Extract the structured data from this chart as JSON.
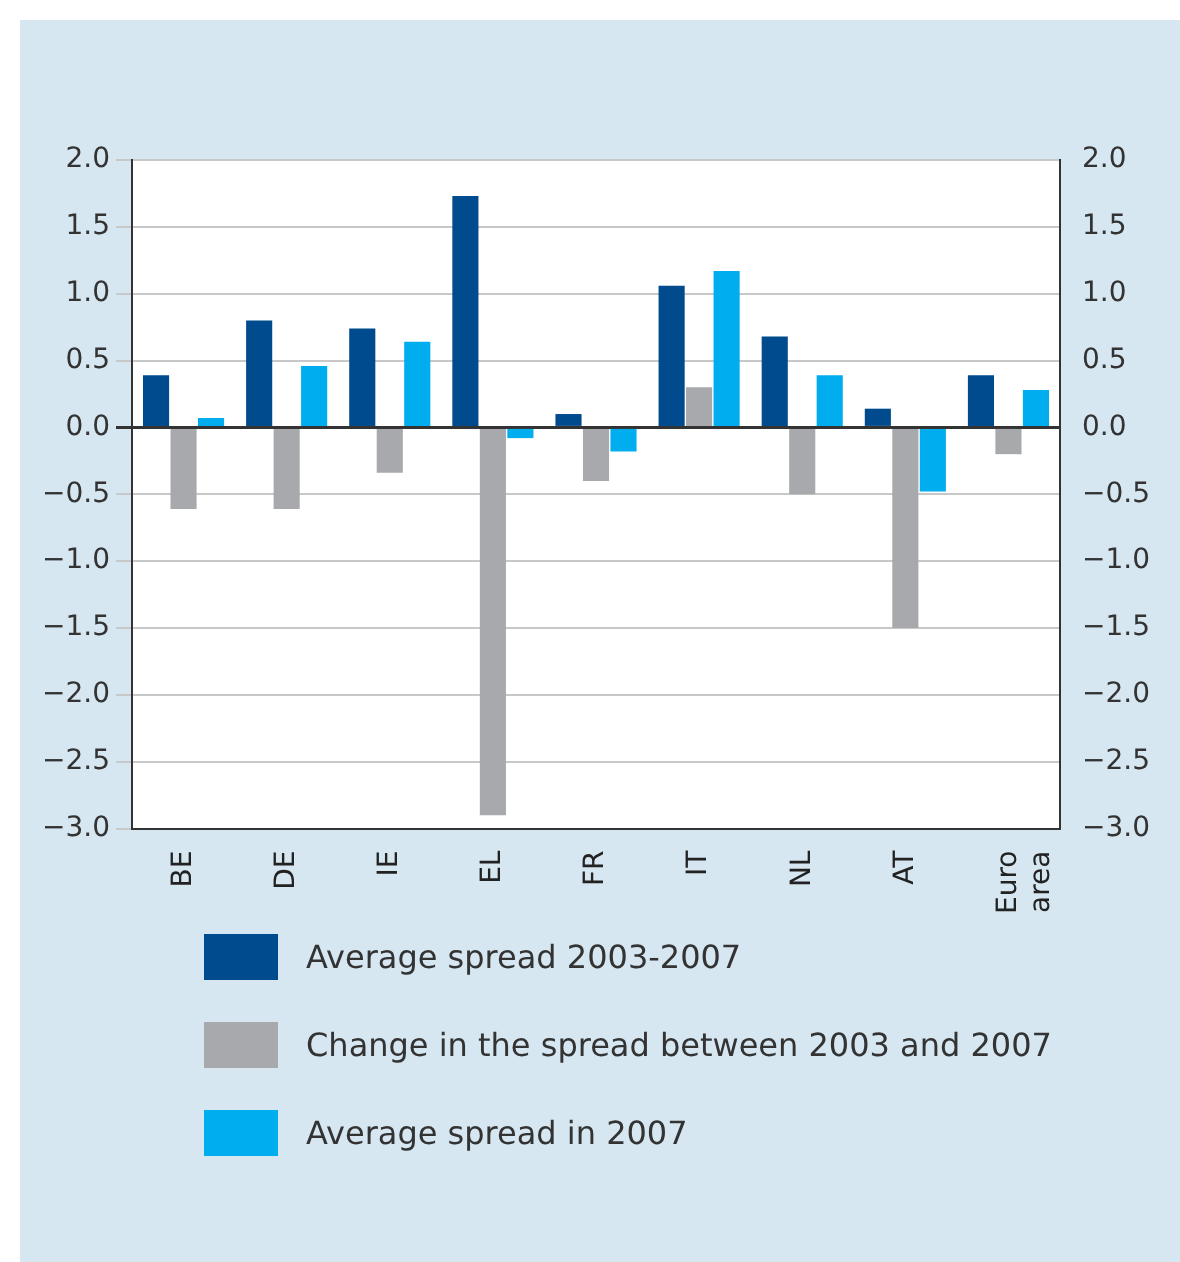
{
  "chart_data": {
    "type": "bar",
    "categories": [
      "BE",
      "DE",
      "IE",
      "EL",
      "FR",
      "IT",
      "NL",
      "AT",
      "Euro area"
    ],
    "series": [
      {
        "name": "Average spread 2003-2007",
        "color": "#004b8d",
        "values": [
          0.39,
          0.8,
          0.74,
          1.73,
          0.1,
          1.06,
          0.68,
          0.14,
          0.39
        ]
      },
      {
        "name": "Change in the spread between 2003 and 2007",
        "color": "#a7a9ac",
        "values": [
          -0.61,
          -0.61,
          -0.34,
          -2.9,
          -0.4,
          0.3,
          -0.5,
          -1.5,
          -0.2
        ]
      },
      {
        "name": "Average spread in 2007",
        "color": "#00aeef",
        "values": [
          0.07,
          0.46,
          0.64,
          -0.08,
          -0.18,
          1.17,
          0.39,
          -0.48,
          0.28
        ]
      }
    ],
    "ylim": [
      -3.0,
      2.0
    ],
    "yticks": [
      {
        "value": -3,
        "label": "−3.0"
      },
      {
        "value": -2.5,
        "label": "−2.5"
      },
      {
        "value": -2,
        "label": "−2.0"
      },
      {
        "value": -1.5,
        "label": "−1.5"
      },
      {
        "value": -1,
        "label": "−1.0"
      },
      {
        "value": -0.5,
        "label": "−0.5"
      },
      {
        "value": 0,
        "label": "0.0"
      },
      {
        "value": 0.5,
        "label": "0.5"
      },
      {
        "value": 1,
        "label": "1.0"
      },
      {
        "value": 1.5,
        "label": "1.5"
      },
      {
        "value": 2,
        "label": "2.0"
      }
    ],
    "y2lim": [
      -3.0,
      2.0
    ],
    "y2ticks": [
      {
        "value": -3,
        "label": "−3.0"
      },
      {
        "value": -2.5,
        "label": "−2.5"
      },
      {
        "value": -2,
        "label": "−2.0"
      },
      {
        "value": -1.5,
        "label": "−1.5"
      },
      {
        "value": -1,
        "label": "−1.0"
      },
      {
        "value": -0.5,
        "label": "−0.5"
      },
      {
        "value": 0,
        "label": "0.0"
      },
      {
        "value": 0.5,
        "label": "0.5"
      },
      {
        "value": 1,
        "label": "1.0"
      },
      {
        "value": 1.5,
        "label": "1.5"
      },
      {
        "value": 2,
        "label": "2.0"
      }
    ],
    "grid": "y",
    "legend": "bottom"
  }
}
